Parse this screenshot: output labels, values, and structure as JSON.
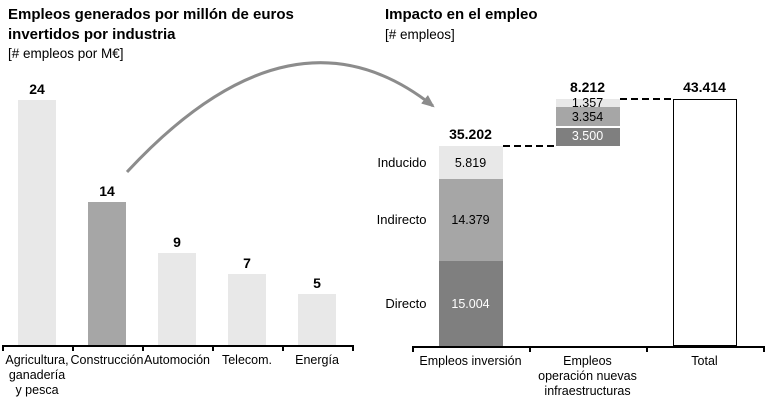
{
  "colors": {
    "light": "#e8e8e8",
    "medium": "#a6a6a6",
    "dark": "#7f7f7f",
    "axis": "#000000",
    "text": "#000000",
    "arrow": "#8c8c8c",
    "total_bar_fill": "#ffffff",
    "total_bar_border": "#000000"
  },
  "chart_data": [
    {
      "type": "bar",
      "title": "Empleos generados por millón de euros invertidos por industria",
      "title_lines": [
        "Empleos generados por millón de euros",
        "invertidos por industria"
      ],
      "unit_label": "[# empleos por M€]",
      "categories": [
        "Agricultura, ganadería y pesca",
        "Construcción",
        "Automoción",
        "Telecom.",
        "Energía"
      ],
      "categories_display": [
        [
          "Agricultura,",
          "ganadería",
          "y pesca"
        ],
        [
          "Construcción"
        ],
        [
          "Automoción"
        ],
        [
          "Telecom."
        ],
        [
          "Energía"
        ]
      ],
      "values": [
        24,
        14,
        9,
        7,
        5
      ],
      "value_labels": [
        "24",
        "14",
        "9",
        "7",
        "5"
      ],
      "bar_styles": [
        "light",
        "medium",
        "light",
        "light",
        "light"
      ],
      "xlabel": "",
      "ylabel": "",
      "ylim": [
        0,
        26
      ],
      "grid": false,
      "legend": "none"
    },
    {
      "type": "bar",
      "subtype": "stacked-waterfall",
      "title": "Impacto en el empleo",
      "unit_label": "[# empleos]",
      "categories": [
        "Empleos inversión",
        "Empleos operación nuevas infraestructuras",
        "Total"
      ],
      "categories_display": [
        [
          "Empleos inversión"
        ],
        [
          "Empleos",
          "operación nuevas",
          "infraestructuras"
        ],
        [
          "Total"
        ]
      ],
      "series": [
        {
          "name": "Inducido",
          "style": "light",
          "values": [
            5819,
            1357
          ],
          "value_labels": [
            "5.819",
            "1.357"
          ]
        },
        {
          "name": "Indirecto",
          "style": "medium",
          "values": [
            14379,
            3354
          ],
          "value_labels": [
            "14.379",
            "3.354"
          ]
        },
        {
          "name": "Directo",
          "style": "dark",
          "values": [
            15004,
            3500
          ],
          "value_labels": [
            "15.004",
            "3.500"
          ]
        }
      ],
      "column_totals": [
        35202,
        8212,
        43414
      ],
      "total_labels": [
        "35.202",
        "8.212",
        "43.414"
      ],
      "total_column_index": 2,
      "xlabel": "",
      "ylabel": "",
      "ylim": [
        0,
        45000
      ],
      "grid": false,
      "legend": "series-names-left-of-first-column"
    }
  ]
}
